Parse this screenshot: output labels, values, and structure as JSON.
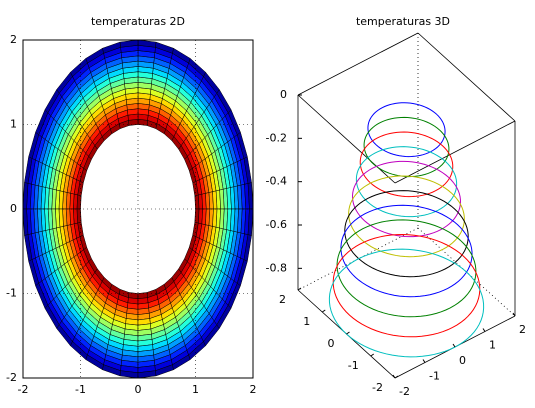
{
  "chart_data": [
    {
      "type": "pcolor",
      "title": "temperaturas 2D",
      "radii": [
        1,
        1.0625,
        1.125,
        1.1875,
        1.25,
        1.3125,
        1.375,
        1.4375,
        1.5,
        1.5625,
        1.625,
        1.6875,
        1.75,
        1.8125,
        1.875,
        1.9375,
        2
      ],
      "values": [
        0.97,
        0.91,
        0.85,
        0.78,
        0.72,
        0.66,
        0.59,
        0.53,
        0.47,
        0.41,
        0.34,
        0.28,
        0.22,
        0.16,
        0.09,
        0.03
      ],
      "sectors": 40,
      "colormap": "jet",
      "clim": [
        0,
        1
      ],
      "xlim": [
        -2,
        2
      ],
      "ylim": [
        -2,
        2
      ],
      "xticks": [
        -2,
        -1,
        0,
        1,
        2
      ],
      "yticks": [
        -2,
        -1,
        0,
        1,
        2
      ],
      "grid": true
    },
    {
      "type": "circles3d",
      "title": "temperaturas 3D",
      "series": [
        {
          "color": "#0000ff",
          "r": 1,
          "z": -0.1
        },
        {
          "color": "#008000",
          "r": 1.1,
          "z": -0.18
        },
        {
          "color": "#ff0000",
          "r": 1.2,
          "z": -0.26
        },
        {
          "color": "#00bfbf",
          "r": 1.3,
          "z": -0.34
        },
        {
          "color": "#bf00bf",
          "r": 1.4,
          "z": -0.42
        },
        {
          "color": "#bfbf00",
          "r": 1.5,
          "z": -0.5
        },
        {
          "color": "#000000",
          "r": 1.6,
          "z": -0.58
        },
        {
          "color": "#0000ff",
          "r": 1.7,
          "z": -0.66
        },
        {
          "color": "#008000",
          "r": 1.8,
          "z": -0.74
        },
        {
          "color": "#ff0000",
          "r": 1.9,
          "z": -0.82
        },
        {
          "color": "#00bfbf",
          "r": 2,
          "z": -0.9
        }
      ],
      "xlim": [
        -2,
        2
      ],
      "ylim": [
        -2,
        2
      ],
      "zlim": [
        -0.9,
        0
      ],
      "xticks": [
        -2,
        -1,
        0,
        1,
        2
      ],
      "yticks": [
        -2,
        -1,
        0,
        1,
        2
      ],
      "zticks": [
        -0.8,
        -0.6,
        -0.4,
        -0.2,
        0
      ]
    }
  ]
}
